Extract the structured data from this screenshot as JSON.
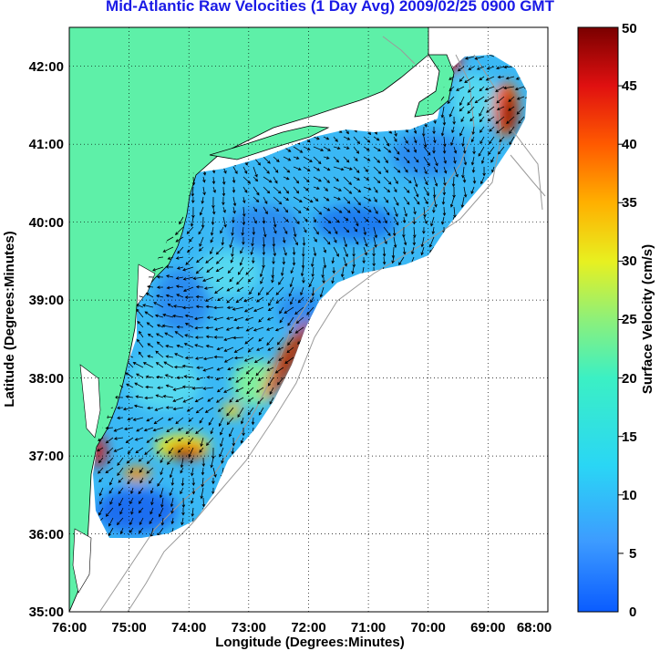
{
  "title": "Mid-Atlantic Raw Velocities (1 Day Avg) 2009/02/25 0900 GMT",
  "map": {
    "xlabel": "Longitude (Degrees:Minutes)",
    "ylabel": "Latitude (Degrees:Minutes)",
    "x_ticks": [
      "76:00",
      "75:00",
      "74:00",
      "73:00",
      "72:00",
      "71:00",
      "70:00",
      "69:00",
      "68:00"
    ],
    "y_ticks": [
      "42:00",
      "41:00",
      "40:00",
      "39:00",
      "38:00",
      "37:00",
      "36:00",
      "35:00"
    ],
    "lon_range": [
      -76,
      -68
    ],
    "lat_range": [
      35,
      42.5
    ],
    "grid": "dotted",
    "land_color": "#5ef0a8",
    "colors": {
      "title": "#1a1ae6",
      "contour": "#9a9a9a",
      "vector": "#000000"
    }
  },
  "colorbar": {
    "label": "Surface Velocity (cm/s)",
    "min": 0,
    "max": 50,
    "ticks": [
      "50",
      "45",
      "40",
      "35",
      "30",
      "25",
      "20",
      "15",
      "10",
      "5",
      "0"
    ],
    "colormap": "jet"
  }
}
